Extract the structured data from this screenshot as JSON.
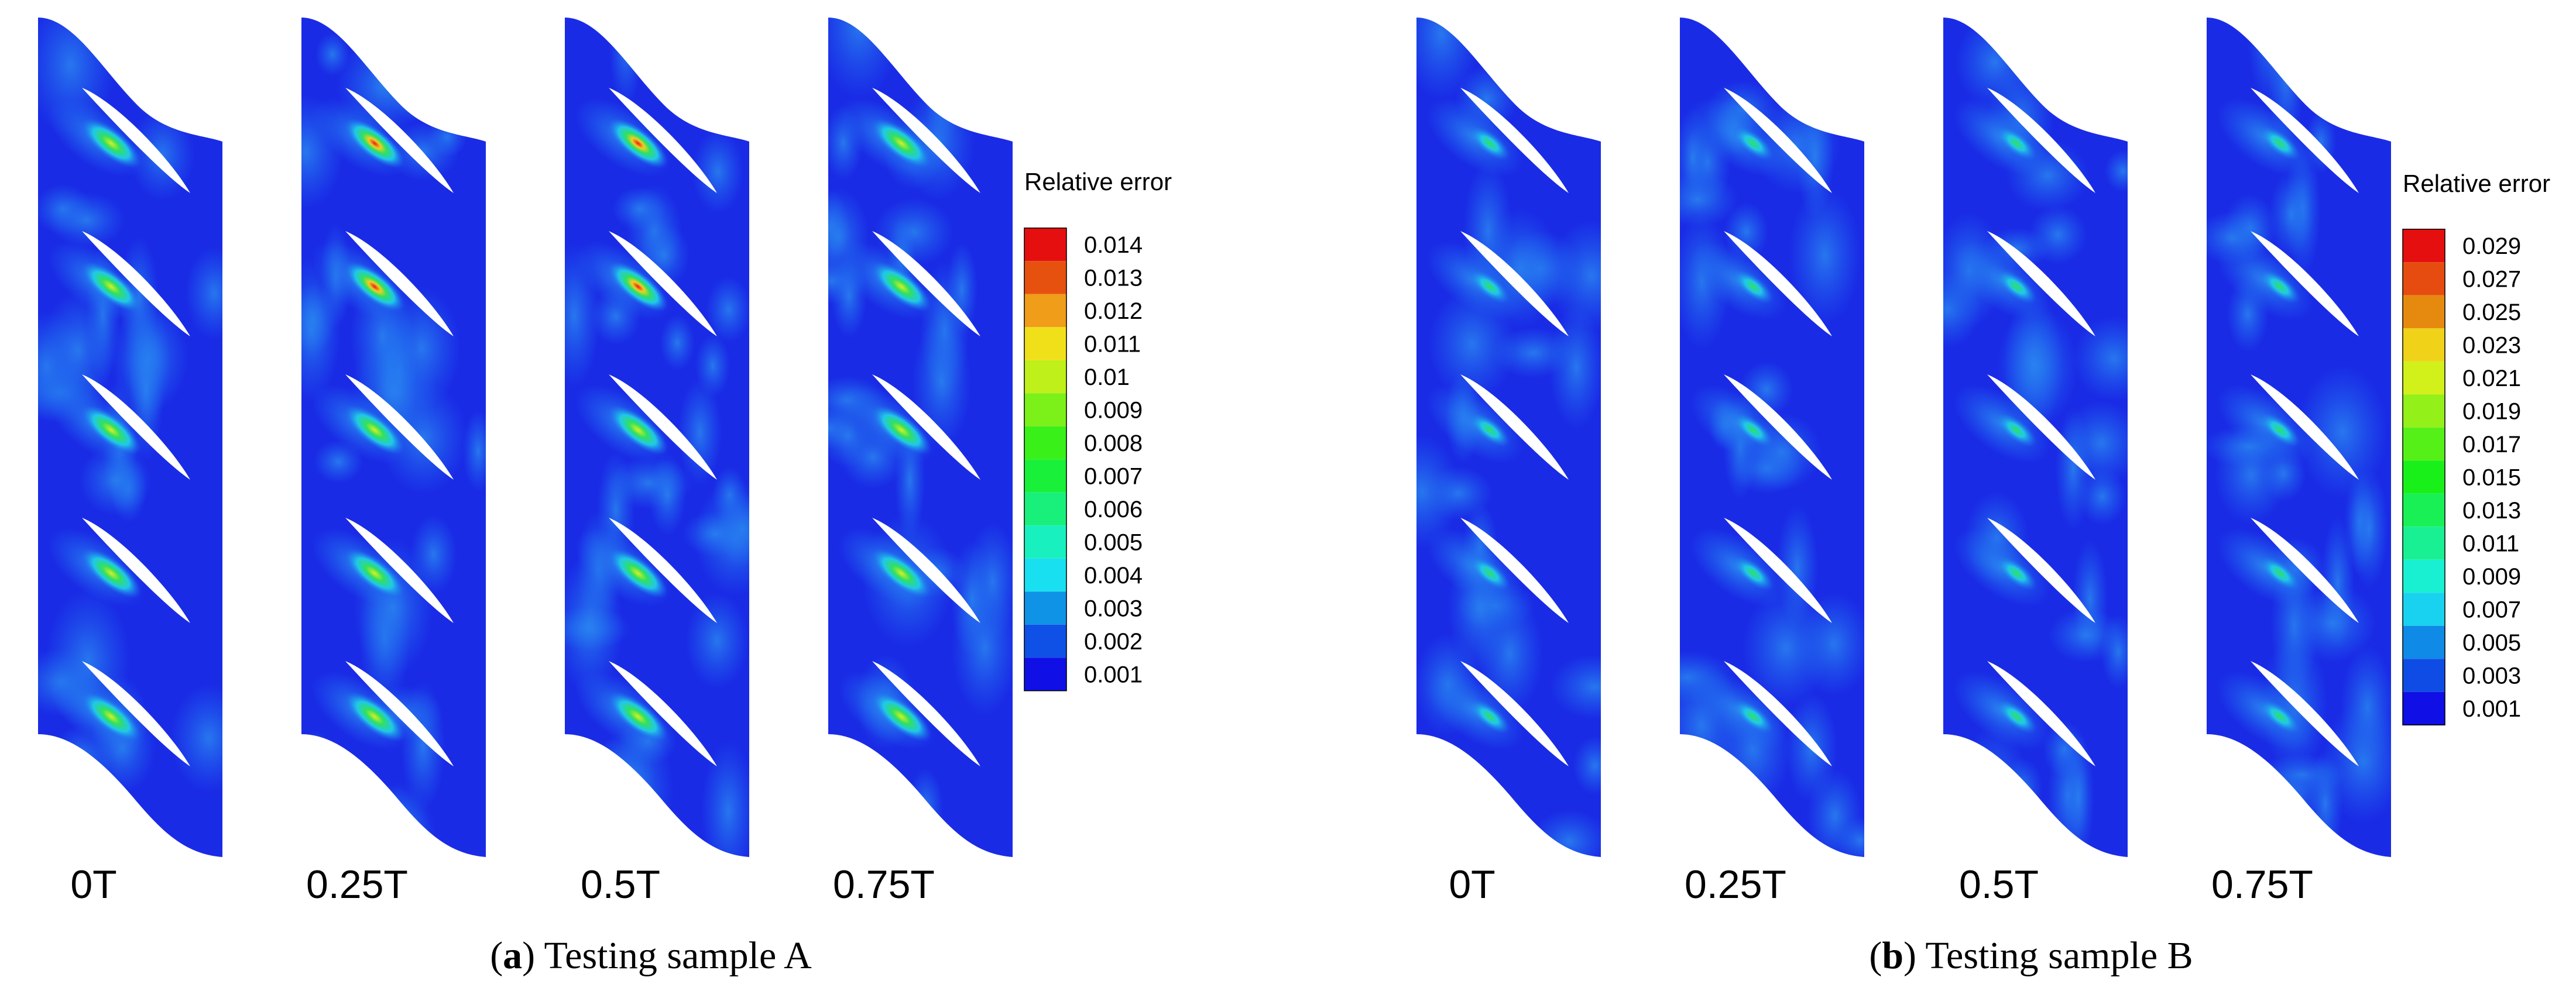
{
  "panels": [
    {
      "id": "a",
      "caption_letter": "a",
      "caption_text": " Testing sample A",
      "time_labels": [
        "0T",
        "0.25T",
        "0.5T",
        "0.75T"
      ],
      "legend": {
        "title": "Relative error",
        "ticks": [
          "0.014",
          "0.013",
          "0.012",
          "0.011",
          "0.01",
          "0.009",
          "0.008",
          "0.007",
          "0.006",
          "0.005",
          "0.004",
          "0.003",
          "0.002",
          "0.001"
        ]
      }
    },
    {
      "id": "b",
      "caption_letter": "b",
      "caption_text": " Testing sample B",
      "time_labels": [
        "0T",
        "0.25T",
        "0.5T",
        "0.75T"
      ],
      "legend": {
        "title": "Relative error",
        "ticks": [
          "0.029",
          "0.027",
          "0.025",
          "0.023",
          "0.021",
          "0.019",
          "0.017",
          "0.015",
          "0.013",
          "0.011",
          "0.009",
          "0.007",
          "0.005",
          "0.003",
          "0.001"
        ]
      }
    }
  ],
  "colors": {
    "background_field": "#1a2be6",
    "light_field": "#1e6cf0",
    "cyan": "#18c8e8",
    "green": "#26e060",
    "yellow": "#e8f020",
    "red": "#e81c1c",
    "blade": "#ffffff"
  }
}
